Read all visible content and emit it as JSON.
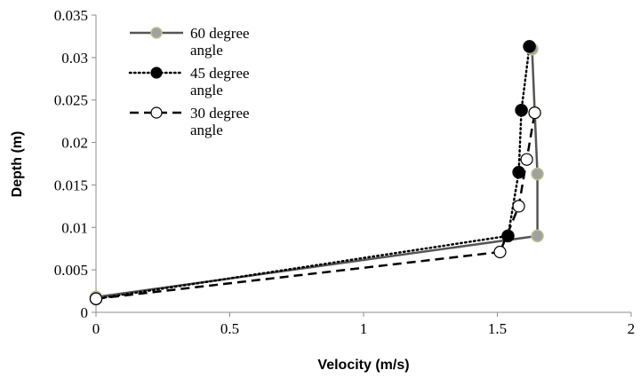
{
  "chart_data": {
    "type": "line",
    "xlabel": "Velocity (m/s)",
    "ylabel": "Depth (m)",
    "xlim": [
      0,
      2
    ],
    "ylim": [
      0,
      0.035
    ],
    "xticks": [
      "0",
      "0.5",
      "1",
      "1.5",
      "2"
    ],
    "yticks": [
      "0",
      "0.005",
      "0.01",
      "0.015",
      "0.02",
      "0.025",
      "0.03",
      "0.035"
    ],
    "grid": false,
    "legend_position": "top-left",
    "series": [
      {
        "name": "60 degree angle",
        "line_style": "solid",
        "line_color": "#555555",
        "marker": "circle",
        "marker_fill": "#a0a0a0",
        "marker_edge": "#b9c68a",
        "x": [
          0.0,
          1.65,
          1.65,
          1.64,
          1.63
        ],
        "y": [
          0.0018,
          0.009,
          0.0163,
          0.0235,
          0.031
        ]
      },
      {
        "name": "45 degree angle",
        "line_style": "dotted",
        "line_color": "#000000",
        "marker": "circle",
        "marker_fill": "#000000",
        "marker_edge": "#000000",
        "x": [
          0.0,
          1.54,
          1.58,
          1.59,
          1.62
        ],
        "y": [
          0.0016,
          0.009,
          0.0165,
          0.0238,
          0.0313
        ]
      },
      {
        "name": "30 degree angle",
        "line_style": "dashed",
        "line_color": "#000000",
        "marker": "circle-open",
        "marker_fill": "#ffffff",
        "marker_edge": "#000000",
        "x": [
          0.0,
          1.51,
          1.58,
          1.61,
          1.64
        ],
        "y": [
          0.0016,
          0.0071,
          0.0125,
          0.018,
          0.0235
        ]
      }
    ]
  }
}
